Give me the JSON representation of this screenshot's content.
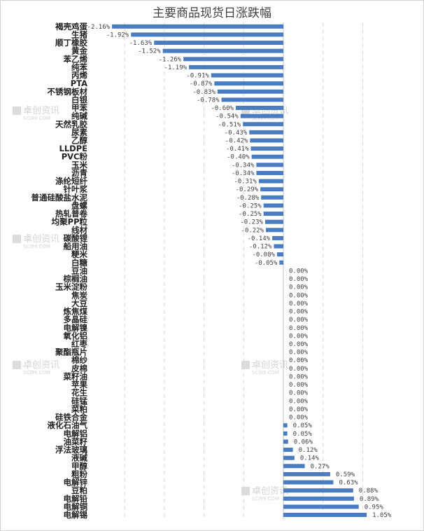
{
  "chart_data": {
    "type": "bar",
    "orientation": "horizontal",
    "title": "主要商品现货日涨跌幅",
    "xlim": [
      -2.5,
      1.2
    ],
    "grid": true,
    "bar_color": "#4a7cc2",
    "watermark": {
      "name": "卓创资讯",
      "site": "SCI99.COM"
    },
    "categories": [
      "褐壳鸡蛋",
      "生猪",
      "顺丁橡胶",
      "黄金",
      "苯乙烯",
      "纯苯",
      "丙烯",
      "PTA",
      "不锈钢板材",
      "白银",
      "甲苯",
      "纯碱",
      "天然乳胶",
      "尿素",
      "乙醇",
      "LLDPE",
      "PVC粉",
      "玉米",
      "沥青",
      "涤纶短纤",
      "针叶浆",
      "普通硅酸盐水泥",
      "盘螺",
      "热轧普卷",
      "均聚PP粒",
      "线材",
      "碳酸锂",
      "船用油",
      "粳米",
      "白糖",
      "豆油",
      "棕榈油",
      "玉米淀粉",
      "焦炭",
      "大豆",
      "炼焦煤",
      "多晶硅",
      "电解镍",
      "氧化铝",
      "红枣",
      "聚酯瓶片",
      "棉纱",
      "皮棉",
      "菜籽油",
      "苹果",
      "花生",
      "硅锰",
      "菜粕",
      "硅铁合金",
      "液化石油气",
      "电解铝",
      "油菜籽",
      "浮法玻璃",
      "液碱",
      "甲醇",
      "粗粉",
      "电解锌",
      "豆粕",
      "电解铅",
      "电解铜",
      "电解锡"
    ],
    "values": [
      -2.16,
      -1.92,
      -1.63,
      -1.52,
      -1.26,
      -1.19,
      -0.91,
      -0.87,
      -0.83,
      -0.78,
      -0.6,
      -0.54,
      -0.51,
      -0.43,
      -0.42,
      -0.41,
      -0.4,
      -0.34,
      -0.34,
      -0.31,
      -0.29,
      -0.28,
      -0.25,
      -0.25,
      -0.23,
      -0.22,
      -0.14,
      -0.12,
      -0.08,
      -0.05,
      0.0,
      0.0,
      0.0,
      0.0,
      0.0,
      0.0,
      0.0,
      0.0,
      0.0,
      0.0,
      0.0,
      0.0,
      0.0,
      0.0,
      0.0,
      0.0,
      0.0,
      0.0,
      0.0,
      0.05,
      0.05,
      0.06,
      0.12,
      0.14,
      0.27,
      0.59,
      0.63,
      0.88,
      0.89,
      0.95,
      1.05
    ],
    "labels": [
      "-2.16%",
      "-1.92%",
      "-1.63%",
      "-1.52%",
      "-1.26%",
      "-1.19%",
      "-0.91%",
      "-0.87%",
      "-0.83%",
      "-0.78%",
      "-0.60%",
      "-0.54%",
      "-0.51%",
      "-0.43%",
      "-0.42%",
      "-0.41%",
      "-0.40%",
      "-0.34%",
      "-0.34%",
      "-0.31%",
      "-0.29%",
      "-0.28%",
      "-0.25%",
      "-0.25%",
      "-0.23%",
      "-0.22%",
      "-0.14%",
      "-0.12%",
      "-0.08%",
      "-0.05%",
      "0.00%",
      "0.00%",
      "0.00%",
      "0.00%",
      "0.00%",
      "0.00%",
      "0.00%",
      "0.00%",
      "0.00%",
      "0.00%",
      "0.00%",
      "0.00%",
      "0.00%",
      "0.00%",
      "0.00%",
      "0.00%",
      "0.00%",
      "0.00%",
      "0.00%",
      "0.05%",
      "0.05%",
      "0.06%",
      "0.12%",
      "0.14%",
      "0.27%",
      "0.59%",
      "0.63%",
      "0.88%",
      "0.89%",
      "0.95%",
      "1.05%"
    ]
  }
}
